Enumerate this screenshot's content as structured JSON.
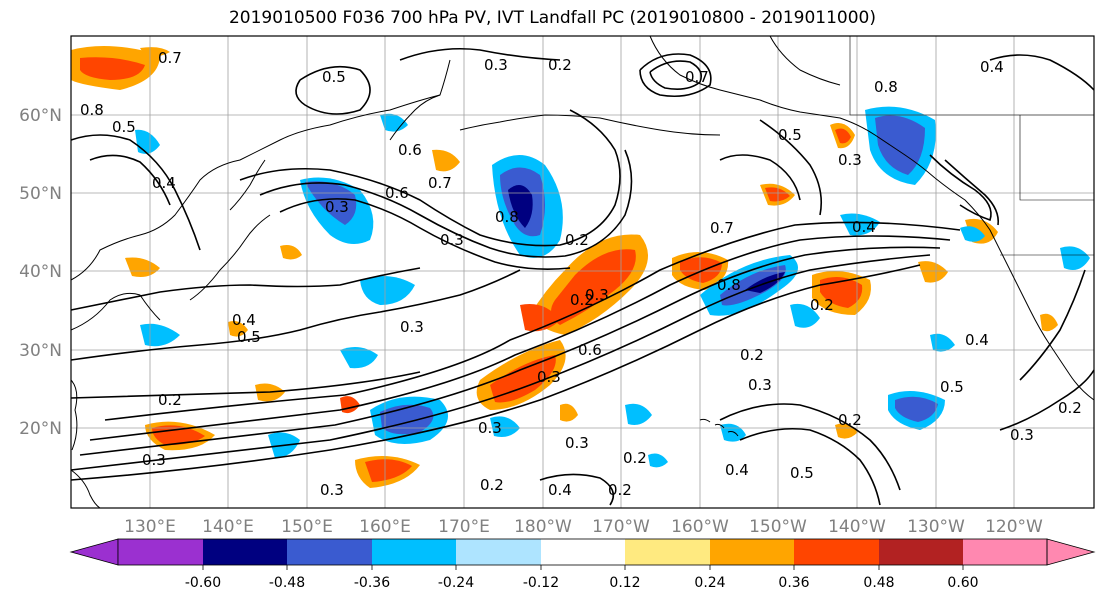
{
  "title": "2019010500 F036 700 hPa PV, IVT Landfall PC (2019010800 - 2019011000)",
  "lat_labels": [
    "60°N",
    "50°N",
    "40°N",
    "30°N",
    "20°N"
  ],
  "lon_labels": [
    "130°E",
    "140°E",
    "150°E",
    "160°E",
    "170°E",
    "180°W",
    "170°W",
    "160°W",
    "150°W",
    "140°W",
    "130°W",
    "120°W"
  ],
  "contour_labels": [
    "0.7",
    "0.5",
    "0.8",
    "0.5",
    "0.4",
    "0.3",
    "0.6",
    "0.7",
    "0.3",
    "0.2",
    "0.3",
    "0.2",
    "0.6",
    "0.7",
    "0.5",
    "0.2",
    "0.8",
    "0.3",
    "0.2",
    "0.4",
    "0.3",
    "0.3",
    "0.7",
    "0.4",
    "0.8",
    "0.5",
    "0.2",
    "0.3",
    "0.4",
    "0.8",
    "0.2",
    "0.2",
    "0.4",
    "0.3",
    "0.6",
    "0.3",
    "0.3",
    "0.2",
    "0.4",
    "0.3",
    "0.2",
    "0.2",
    "0.3",
    "0.3",
    "0.5",
    "0.2",
    "0.4",
    "0.5"
  ],
  "colorbar": {
    "colors": [
      "#9b30d0",
      "#000080",
      "#3a5bd0",
      "#00bfff",
      "#aee4ff",
      "#ffffff",
      "#ffea80",
      "#ffa500",
      "#ff4500",
      "#b22222",
      "#ff88b0"
    ],
    "tick_labels": [
      "-0.60",
      "-0.48",
      "-0.36",
      "-0.24",
      "-0.12",
      "0.12",
      "0.24",
      "0.36",
      "0.48",
      "0.60"
    ]
  }
}
